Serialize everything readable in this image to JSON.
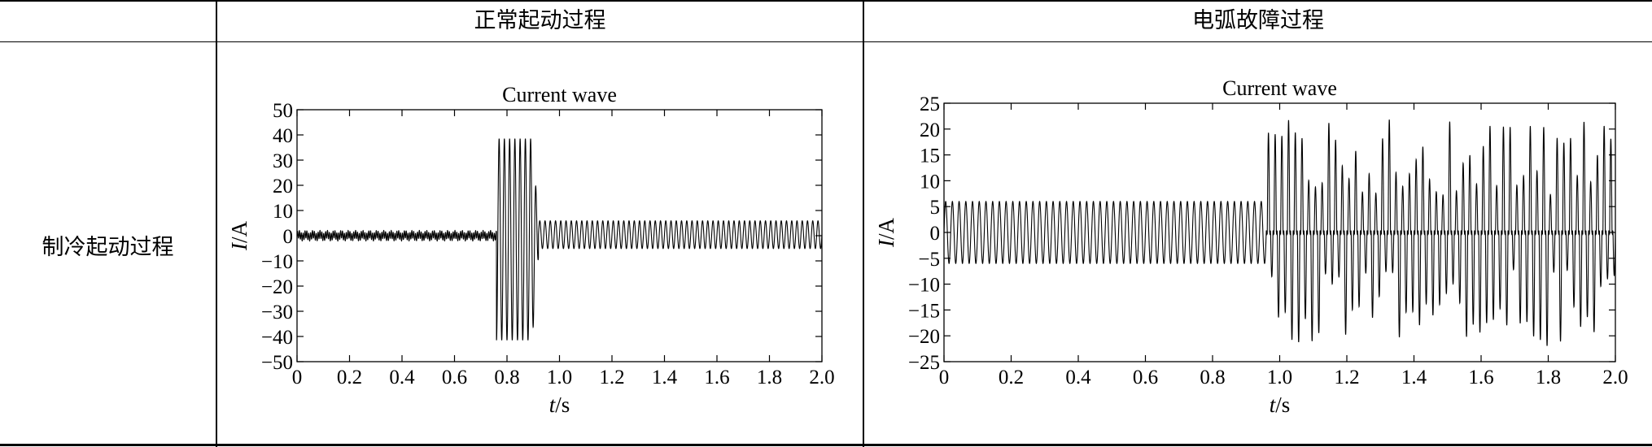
{
  "table": {
    "corner": "",
    "columns": [
      "正常起动过程",
      "电弧故障过程"
    ],
    "row_label": "制冷起动过程"
  },
  "chart_data": [
    {
      "type": "line",
      "title": "Current wave",
      "xlabel": "t/s",
      "ylabel": "I/A",
      "xlim": [
        0,
        2.0
      ],
      "ylim": [
        -50,
        50
      ],
      "xticks": [
        "0",
        "0.2",
        "0.4",
        "0.6",
        "0.8",
        "1.0",
        "1.2",
        "1.4",
        "1.6",
        "1.8",
        "2.0"
      ],
      "yticks": [
        "50",
        "40",
        "30",
        "20",
        "10",
        "0",
        "−10",
        "−20",
        "−30",
        "−40",
        "−50"
      ],
      "grid": false,
      "segments": [
        {
          "t": [
            0,
            0.76
          ],
          "amplitude": 2,
          "description": "steady small current"
        },
        {
          "t": [
            0.76,
            0.92
          ],
          "amplitude": 40,
          "description": "inrush starting current"
        },
        {
          "t": [
            0.92,
            2.0
          ],
          "amplitude": 6,
          "description": "steady running current"
        }
      ]
    },
    {
      "type": "line",
      "title": "Current wave",
      "xlabel": "t/s",
      "ylabel": "I/A",
      "xlim": [
        0,
        2.0
      ],
      "ylim": [
        -25,
        25
      ],
      "xticks": [
        "0",
        "0.2",
        "0.4",
        "0.6",
        "0.8",
        "1.0",
        "1.2",
        "1.4",
        "1.6",
        "1.8",
        "2.0"
      ],
      "yticks": [
        "25",
        "20",
        "15",
        "10",
        "5",
        "0",
        "−5",
        "−10",
        "−15",
        "−20",
        "−25"
      ],
      "grid": false,
      "segments": [
        {
          "t": [
            0,
            0.96
          ],
          "amplitude": 6,
          "description": "normal sinusoidal current"
        },
        {
          "t": [
            0.96,
            2.0
          ],
          "amplitude": 22,
          "description": "arc fault, irregular spikes with flat shoulders"
        }
      ]
    }
  ]
}
